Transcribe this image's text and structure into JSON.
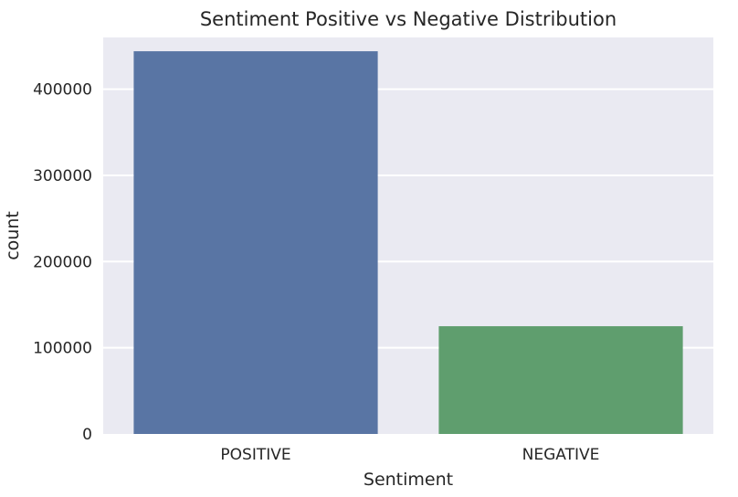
{
  "chart_data": {
    "type": "bar",
    "title": "Sentiment Positive vs Negative Distribution",
    "xlabel": "Sentiment",
    "ylabel": "count",
    "categories": [
      "POSITIVE",
      "NEGATIVE"
    ],
    "values": [
      444000,
      125000
    ],
    "ylim": [
      0,
      460000
    ],
    "yticks": [
      0,
      100000,
      200000,
      300000,
      400000
    ],
    "grid": true,
    "background_color": "#EAEAF2",
    "bar_colors": [
      "#5975A4",
      "#5F9E6E"
    ]
  }
}
